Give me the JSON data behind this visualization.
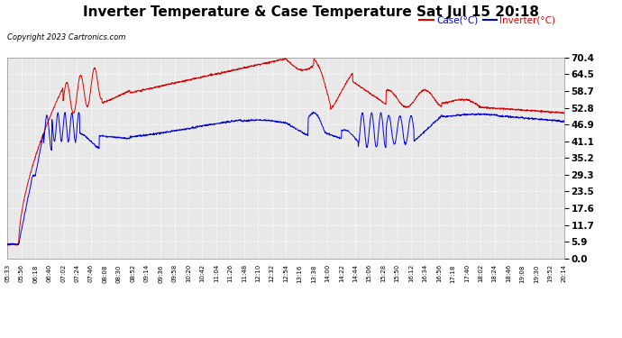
{
  "title": "Inverter Temperature & Case Temperature Sat Jul 15 20:18",
  "copyright": "Copyright 2023 Cartronics.com",
  "legend_case": "Case(°C)",
  "legend_inverter": "Inverter(°C)",
  "y_ticks": [
    0.0,
    5.9,
    11.7,
    17.6,
    23.5,
    29.3,
    35.2,
    41.1,
    46.9,
    52.8,
    58.7,
    64.5,
    70.4
  ],
  "y_min": 0.0,
  "y_max": 70.4,
  "background_color": "#ffffff",
  "plot_bg_color": "#e8e8e8",
  "grid_color": "#ffffff",
  "case_color": "#dd0000",
  "inverter_color": "#0000dd",
  "title_fontsize": 11,
  "x_labels": [
    "05:33",
    "05:56",
    "06:18",
    "06:40",
    "07:02",
    "07:24",
    "07:46",
    "08:08",
    "08:30",
    "08:52",
    "09:14",
    "09:36",
    "09:58",
    "10:20",
    "10:42",
    "11:04",
    "11:26",
    "11:48",
    "12:10",
    "12:32",
    "12:54",
    "13:16",
    "13:38",
    "14:00",
    "14:22",
    "14:44",
    "15:06",
    "15:28",
    "15:50",
    "16:12",
    "16:34",
    "16:56",
    "17:18",
    "17:40",
    "18:02",
    "18:24",
    "18:46",
    "19:08",
    "19:30",
    "19:52",
    "20:14"
  ]
}
